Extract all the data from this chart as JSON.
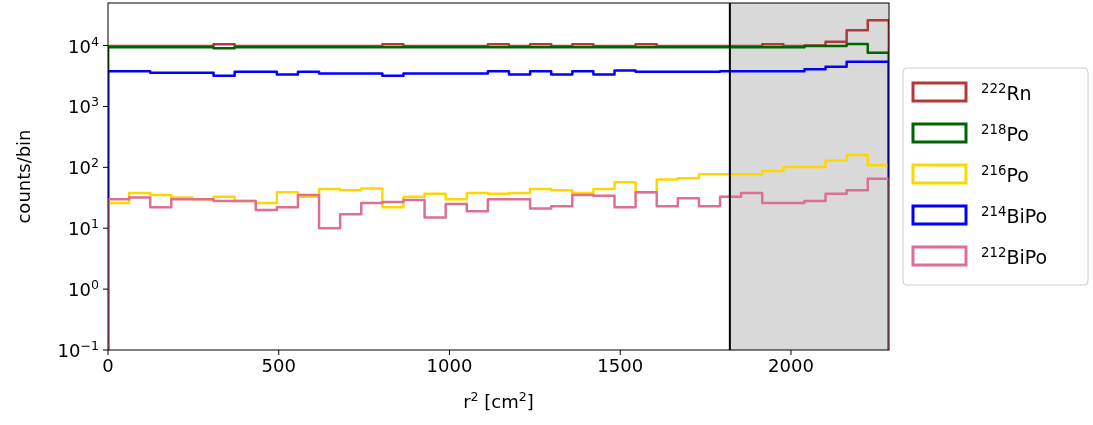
{
  "chart_data": {
    "type": "histogram",
    "xlabel": "r$^{2}$ [cm$^{2}$]",
    "ylabel": "counts/bin",
    "log": "y",
    "legend": "right",
    "grid": false,
    "bins": [
      0,
      61.8,
      123.6,
      185.4,
      247.2,
      309,
      370.8,
      432.6,
      494.4,
      556.2,
      618,
      679.8,
      741.6,
      803.4,
      865.2,
      927,
      988.8,
      1050.6,
      1112.4,
      1174.2,
      1236,
      1297.8,
      1359.6,
      1421.4,
      1483.2,
      1545,
      1606.8,
      1668.6,
      1730.4,
      1792.2,
      1854,
      1915.8,
      1977.6,
      2039.4,
      2101.2,
      2163,
      2224.8,
      2286.6
    ],
    "xlim": [
      0,
      2287
    ],
    "xticks": [
      0,
      500,
      1000,
      1500,
      2000
    ],
    "ylim": [
      0.1,
      50000
    ],
    "yticks": [
      {
        "value": 0.1,
        "label": "10$^{−1}$"
      },
      {
        "value": 1,
        "label": "10$^{0}$"
      },
      {
        "value": 10,
        "label": "10$^{1}$"
      },
      {
        "value": 100,
        "label": "10$^{2}$"
      },
      {
        "value": 1000,
        "label": "10$^{3}$"
      },
      {
        "value": 10000,
        "label": "10$^{4}$"
      }
    ],
    "series": [
      {
        "name": "$^{222}$Rn",
        "color": "#b03a3a",
        "values": [
          9800,
          9800,
          9800,
          9800,
          9800,
          10500,
          9800,
          9800,
          9800,
          9800,
          9800,
          9800,
          9800,
          10500,
          9800,
          9800,
          9800,
          9800,
          10500,
          9800,
          10500,
          9800,
          10500,
          9800,
          9800,
          10500,
          9800,
          9800,
          9800,
          9800,
          9800,
          10500,
          9800,
          10000,
          11500,
          17800,
          26000
        ]
      },
      {
        "name": "$^{218}$Po",
        "color": "#006400",
        "values": [
          9400,
          9400,
          9400,
          9400,
          9400,
          9000,
          9400,
          9400,
          9400,
          9400,
          9400,
          9400,
          9400,
          9400,
          9400,
          9400,
          9400,
          9400,
          9400,
          9400,
          9400,
          9400,
          9400,
          9400,
          9400,
          9400,
          9400,
          9400,
          9400,
          9400,
          9400,
          9400,
          9400,
          9800,
          9800,
          10600,
          7600
        ]
      },
      {
        "name": "$^{216}$Po",
        "color": "#ffd700",
        "values": [
          26,
          38,
          35,
          32,
          30,
          33,
          28,
          26,
          39,
          33,
          44,
          42,
          45,
          22,
          33,
          37,
          30,
          38,
          37,
          38,
          44,
          42,
          38,
          44,
          57,
          39,
          63,
          66,
          77,
          77,
          77,
          87,
          101,
          101,
          130,
          159,
          108
        ]
      },
      {
        "name": "$^{214}$BiPo",
        "color": "#0000ff",
        "values": [
          3800,
          3800,
          3560,
          3560,
          3560,
          3200,
          3700,
          3700,
          3350,
          3700,
          3480,
          3480,
          3480,
          3200,
          3480,
          3480,
          3480,
          3480,
          3800,
          3350,
          3800,
          3350,
          3800,
          3350,
          3900,
          3700,
          3700,
          3700,
          3700,
          3800,
          3800,
          3800,
          3800,
          4100,
          4470,
          5400,
          5400
        ]
      },
      {
        "name": "$^{212}$BiPo",
        "color": "#db7093",
        "values": [
          30,
          32,
          22,
          30,
          30,
          28,
          28,
          20,
          22,
          35,
          10,
          17,
          26,
          27,
          29,
          15,
          25,
          19,
          30,
          30,
          21,
          23,
          35,
          34,
          22,
          39,
          23,
          31,
          23,
          33,
          38,
          26,
          26,
          28,
          37,
          42,
          65
        ]
      }
    ],
    "ref_lines": [
      {
        "axis": "x",
        "value": 1821,
        "color": "#000000"
      }
    ],
    "bands": [
      {
        "axis": "x",
        "from": 1821,
        "to": 2287,
        "color": "#d9d9d9"
      }
    ]
  }
}
